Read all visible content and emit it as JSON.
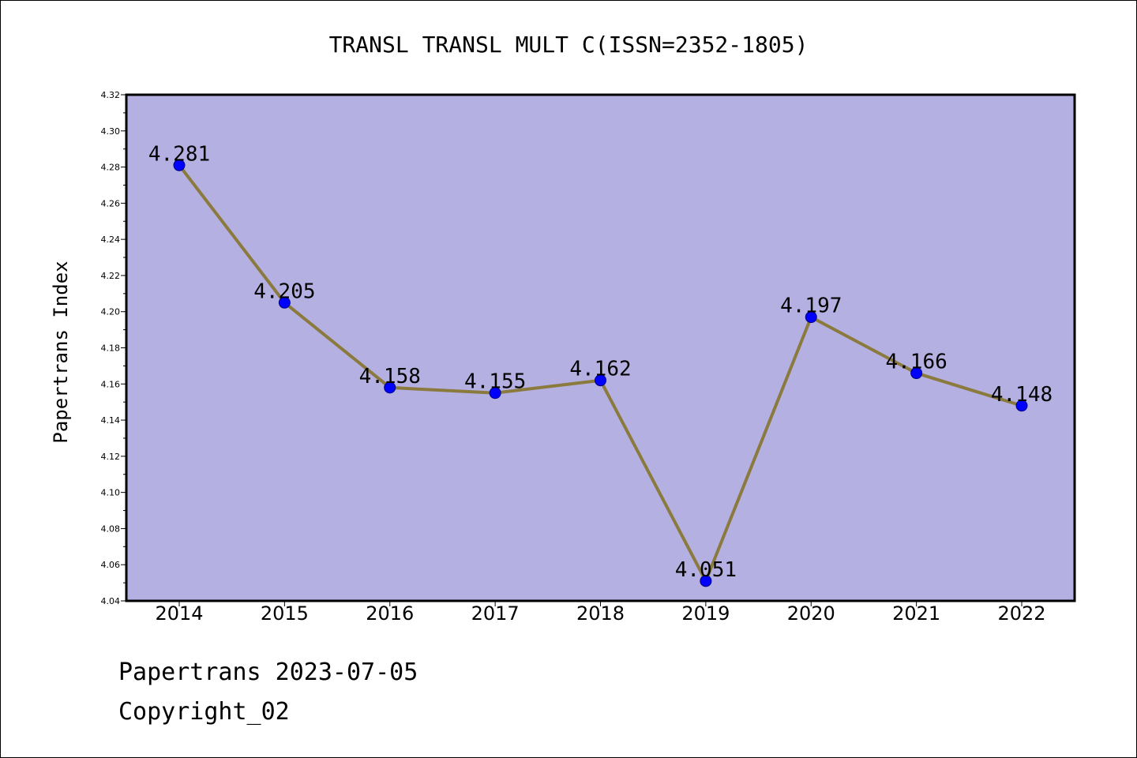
{
  "colors": {
    "plot_bg": "#b5b0e2",
    "line": "#8b7a3e",
    "marker": "#0000ff",
    "marker_edge": "#000080",
    "axis": "#000000"
  },
  "chart_data": {
    "type": "line",
    "title": "TRANSL TRANSL MULT C(ISSN=2352-1805)",
    "xlabel": "",
    "ylabel": "Papertrans Index",
    "categories": [
      "2014",
      "2015",
      "2016",
      "2017",
      "2018",
      "2019",
      "2020",
      "2021",
      "2022"
    ],
    "series": [
      {
        "values": [
          4.281,
          4.205,
          4.158,
          4.155,
          4.162,
          4.051,
          4.197,
          4.166,
          4.148
        ],
        "labels": [
          "4.281",
          "4.205",
          "4.158",
          "4.155",
          "4.162",
          "4.051",
          "4.197",
          "4.166",
          "4.148"
        ]
      }
    ],
    "ylim": [
      4.04,
      4.32
    ],
    "yticks": [
      "4.04",
      "4.06",
      "4.08",
      "4.10",
      "4.12",
      "4.14",
      "4.16",
      "4.18",
      "4.20",
      "4.22",
      "4.24",
      "4.26",
      "4.28",
      "4.30",
      "4.32"
    ],
    "grid": false,
    "legend": "none"
  },
  "footer": {
    "line1": "Papertrans 2023-07-05",
    "line2": "Copyright_02"
  }
}
